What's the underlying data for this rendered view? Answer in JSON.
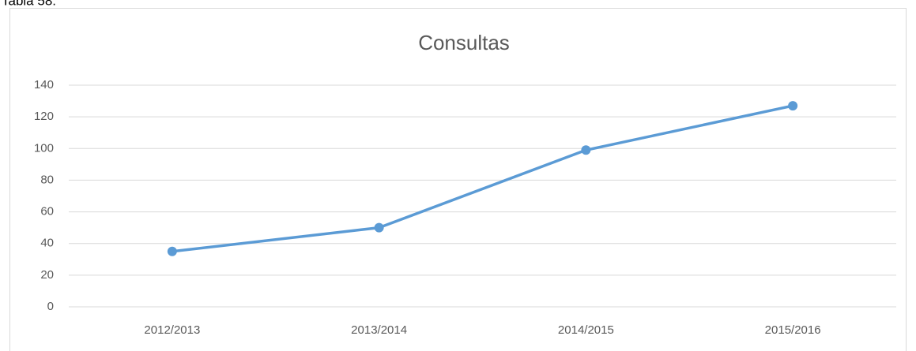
{
  "caption": "Tabla 58.",
  "chart_data": {
    "type": "line",
    "title": "Consultas",
    "categories": [
      "2012/2013",
      "2013/2014",
      "2014/2015",
      "2015/2016"
    ],
    "values": [
      35,
      50,
      99,
      127
    ],
    "color": "#5b9bd5",
    "ylim": [
      0,
      140
    ],
    "yticks": [
      0,
      20,
      40,
      60,
      80,
      100,
      120,
      140
    ],
    "grid": true
  }
}
